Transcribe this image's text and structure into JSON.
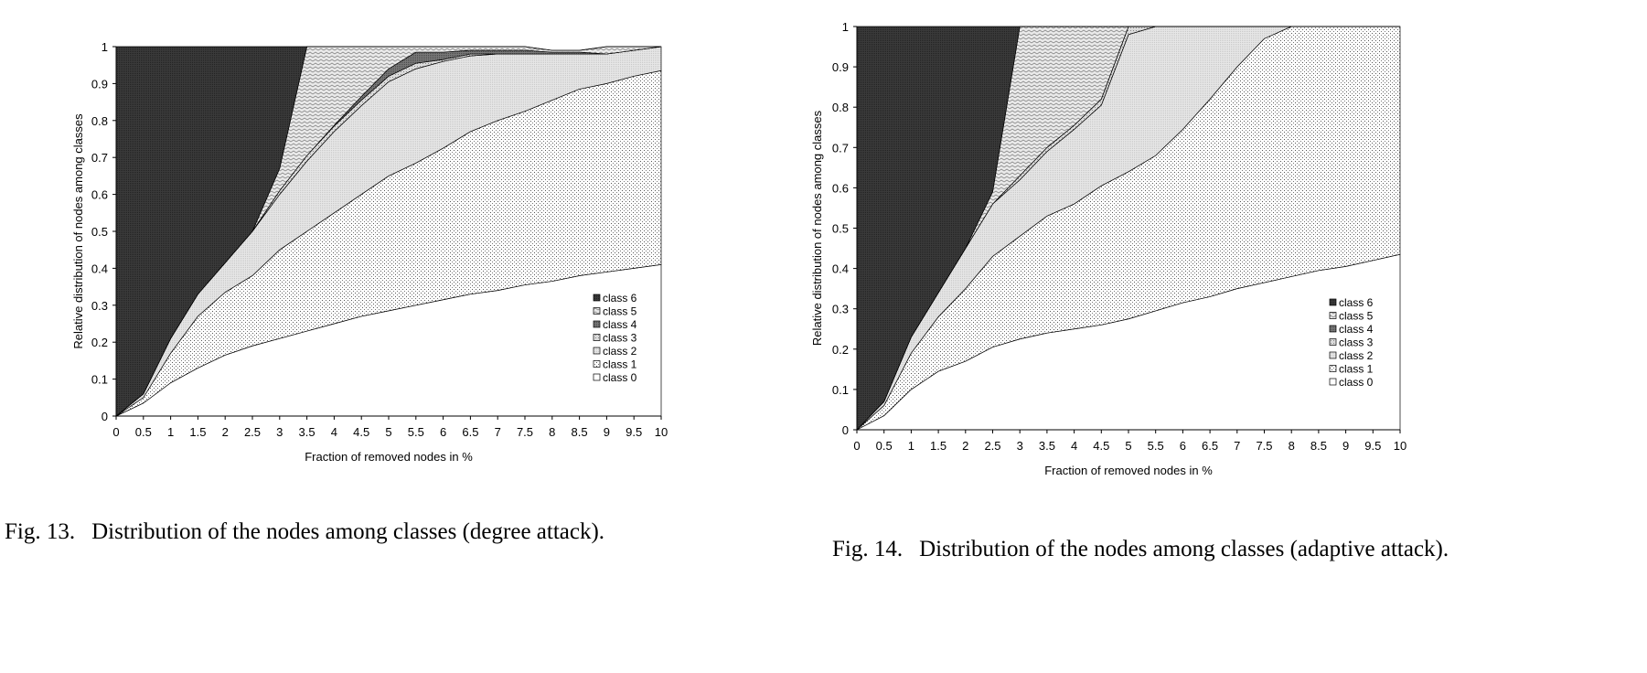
{
  "chart_data": [
    {
      "type": "area",
      "stacked": true,
      "xlabel": "Fraction of removed nodes in %",
      "ylabel": "Relative distribution of nodes among classes",
      "xlim": [
        0,
        10
      ],
      "ylim": [
        0,
        1
      ],
      "x_ticks": [
        "0",
        "0.5",
        "1",
        "1.5",
        "2",
        "2.5",
        "3",
        "3.5",
        "4",
        "4.5",
        "5",
        "5.5",
        "6",
        "6.5",
        "7",
        "7.5",
        "8",
        "8.5",
        "9",
        "9.5",
        "10"
      ],
      "y_ticks": [
        "0",
        "0.1",
        "0.2",
        "0.3",
        "0.4",
        "0.5",
        "0.6",
        "0.7",
        "0.8",
        "0.9",
        "1"
      ],
      "legend_position": "right",
      "grid": false,
      "x": [
        0,
        0.5,
        1,
        1.5,
        2,
        2.5,
        3,
        3.5,
        4,
        4.5,
        5,
        5.5,
        6,
        6.5,
        7,
        7.5,
        8,
        8.5,
        9,
        9.5,
        10
      ],
      "series": [
        {
          "name": "class 0",
          "values": [
            0,
            0.035,
            0.09,
            0.13,
            0.165,
            0.19,
            0.21,
            0.23,
            0.25,
            0.27,
            0.285,
            0.3,
            0.315,
            0.33,
            0.34,
            0.355,
            0.365,
            0.38,
            0.39,
            0.4,
            0.41
          ]
        },
        {
          "name": "class 1",
          "values": [
            0,
            0.015,
            0.08,
            0.14,
            0.17,
            0.19,
            0.24,
            0.27,
            0.3,
            0.33,
            0.365,
            0.385,
            0.41,
            0.44,
            0.46,
            0.47,
            0.49,
            0.505,
            0.51,
            0.52,
            0.525
          ]
        },
        {
          "name": "class 2",
          "values": [
            0,
            0.01,
            0.04,
            0.06,
            0.08,
            0.12,
            0.15,
            0.19,
            0.22,
            0.24,
            0.255,
            0.255,
            0.235,
            0.205,
            0.18,
            0.155,
            0.125,
            0.095,
            0.08,
            0.07,
            0.065
          ]
        },
        {
          "name": "class 3",
          "values": [
            0,
            0,
            0,
            0,
            0,
            0,
            0.01,
            0.015,
            0.015,
            0.015,
            0.015,
            0.015,
            0.005,
            0.005,
            0,
            0,
            0,
            0,
            0,
            0,
            0
          ]
        },
        {
          "name": "class 4",
          "values": [
            0,
            0,
            0,
            0,
            0,
            0,
            0,
            0,
            0.002,
            0.01,
            0.02,
            0.03,
            0.02,
            0.01,
            0.01,
            0.01,
            0.005,
            0.005,
            0,
            0,
            0
          ]
        },
        {
          "name": "class 5",
          "values": [
            0,
            0,
            0,
            0,
            0,
            0,
            0.06,
            0.295,
            0.213,
            0.135,
            0.06,
            0.015,
            0.015,
            0.01,
            0.01,
            0.01,
            0.005,
            0.005,
            0.02,
            0.01,
            0
          ]
        },
        {
          "name": "class 6",
          "values": [
            1,
            0.94,
            0.79,
            0.67,
            0.585,
            0.5,
            0.33,
            0,
            0,
            0,
            0,
            0,
            0,
            0,
            0,
            0,
            0,
            0,
            0,
            0,
            0
          ]
        }
      ]
    },
    {
      "type": "area",
      "stacked": true,
      "xlabel": "Fraction of removed nodes in %",
      "ylabel": "Relative distribution of nodes among classes",
      "xlim": [
        0,
        10
      ],
      "ylim": [
        0,
        1
      ],
      "x_ticks": [
        "0",
        "0.5",
        "1",
        "1.5",
        "2",
        "2.5",
        "3",
        "3.5",
        "4",
        "4.5",
        "5",
        "5.5",
        "6",
        "6.5",
        "7",
        "7.5",
        "8",
        "8.5",
        "9",
        "9.5",
        "10"
      ],
      "y_ticks": [
        "0",
        "0.1",
        "0.2",
        "0.3",
        "0.4",
        "0.5",
        "0.6",
        "0.7",
        "0.8",
        "0.9",
        "1"
      ],
      "legend_position": "right",
      "grid": false,
      "x": [
        0,
        0.5,
        1,
        1.5,
        2,
        2.5,
        3,
        3.5,
        4,
        4.5,
        5,
        5.5,
        6,
        6.5,
        7,
        7.5,
        8,
        8.5,
        9,
        9.5,
        10
      ],
      "series": [
        {
          "name": "class 0",
          "values": [
            0,
            0.035,
            0.1,
            0.145,
            0.17,
            0.205,
            0.225,
            0.24,
            0.25,
            0.26,
            0.275,
            0.295,
            0.315,
            0.33,
            0.35,
            0.365,
            0.38,
            0.395,
            0.405,
            0.42,
            0.435
          ]
        },
        {
          "name": "class 1",
          "values": [
            0,
            0.025,
            0.09,
            0.135,
            0.18,
            0.225,
            0.255,
            0.29,
            0.31,
            0.345,
            0.365,
            0.385,
            0.43,
            0.49,
            0.55,
            0.605,
            0.62,
            0.605,
            0.595,
            0.58,
            0.565
          ]
        },
        {
          "name": "class 2",
          "values": [
            0,
            0.01,
            0.04,
            0.06,
            0.1,
            0.13,
            0.14,
            0.16,
            0.185,
            0.2,
            0.34,
            0.32,
            0.255,
            0.18,
            0.1,
            0.03,
            0,
            0,
            0,
            0,
            0
          ]
        },
        {
          "name": "class 3",
          "values": [
            0,
            0,
            0,
            0,
            0,
            0,
            0.01,
            0.01,
            0.01,
            0.015,
            0.02,
            0,
            0,
            0,
            0,
            0,
            0,
            0,
            0,
            0,
            0
          ]
        },
        {
          "name": "class 4",
          "values": [
            0,
            0,
            0,
            0,
            0,
            0,
            0,
            0,
            0,
            0,
            0,
            0,
            0,
            0,
            0,
            0,
            0,
            0,
            0,
            0,
            0
          ]
        },
        {
          "name": "class 5",
          "values": [
            0,
            0,
            0,
            0,
            0,
            0.03,
            0.37,
            0.3,
            0.245,
            0.18,
            0,
            0,
            0,
            0,
            0,
            0,
            0,
            0,
            0,
            0,
            0
          ]
        },
        {
          "name": "class 6",
          "values": [
            1,
            0.93,
            0.77,
            0.66,
            0.55,
            0.41,
            0,
            0,
            0,
            0,
            0,
            0,
            0,
            0,
            0,
            0,
            0,
            0,
            0,
            0,
            0
          ]
        }
      ]
    }
  ],
  "captions": [
    {
      "number": "Fig. 13.",
      "text": "Distribution of the nodes among classes (degree attack)."
    },
    {
      "number": "Fig. 14.",
      "text": "Distribution of the nodes among classes (adaptive attack)."
    }
  ]
}
